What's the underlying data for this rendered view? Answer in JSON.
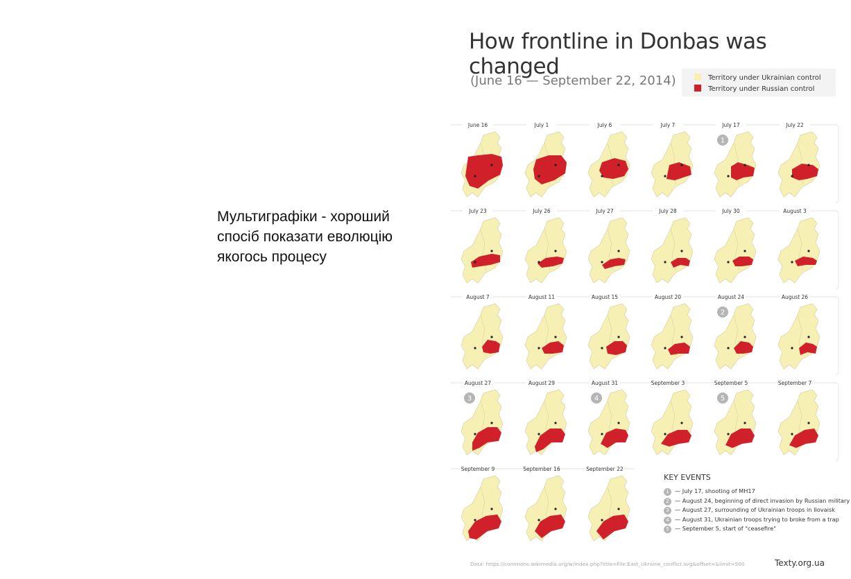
{
  "caption": "Мультиграфіки - хороший спосіб показати еволюцію якогось процесу",
  "colors": {
    "ukrainian": "#f6f0b4",
    "russian": "#d0202a",
    "border": "#dbd7a6",
    "marker": "#b5b5b5"
  },
  "chart_data": {
    "type": "map",
    "title": "How frontline in Donbas was changed",
    "subtitle": "(June 16 — September 22, 2014)",
    "legend": [
      {
        "label": "Territory under Ukrainian control",
        "color": "#f6f0b4"
      },
      {
        "label": "Territory under Russian control",
        "color": "#d0202a"
      }
    ],
    "frames": [
      {
        "date": "June 16"
      },
      {
        "date": "July 1"
      },
      {
        "date": "July 6"
      },
      {
        "date": "July 7"
      },
      {
        "date": "July 17",
        "event": "1"
      },
      {
        "date": "July 22"
      },
      {
        "date": "July 23"
      },
      {
        "date": "July 26"
      },
      {
        "date": "July 27"
      },
      {
        "date": "July 28"
      },
      {
        "date": "July 30"
      },
      {
        "date": "August 3"
      },
      {
        "date": "August 7"
      },
      {
        "date": "August 11"
      },
      {
        "date": "August 15"
      },
      {
        "date": "August 20"
      },
      {
        "date": "August 24",
        "event": "2"
      },
      {
        "date": "August 26"
      },
      {
        "date": "August 27",
        "event": "3"
      },
      {
        "date": "August 29"
      },
      {
        "date": "August 31",
        "event": "4"
      },
      {
        "date": "September 3"
      },
      {
        "date": "September 5",
        "event": "5"
      },
      {
        "date": "September 7"
      },
      {
        "date": "September 9"
      },
      {
        "date": "September 16"
      },
      {
        "date": "September 22"
      }
    ],
    "key_events_title": "KEY EVENTS",
    "key_events": [
      {
        "num": "1",
        "text": "— July 17, shooting of MH17"
      },
      {
        "num": "2",
        "text": "— August 24, beginning of direct invasion by Russian military"
      },
      {
        "num": "3",
        "text": "— August 27, surrounding of Ukrainian troops in Ilovaisk"
      },
      {
        "num": "4",
        "text": "— August 31, Ukrainian troops trying to broke from a trap"
      },
      {
        "num": "5",
        "text": "— September 5, start of \"ceasefire\""
      }
    ],
    "source": "Data: https://commons.wikimedia.org/w/index.php?title=File:East_Ukraine_conflict.svg&offset=&limit=500",
    "brand": "Texty.org.ua"
  }
}
